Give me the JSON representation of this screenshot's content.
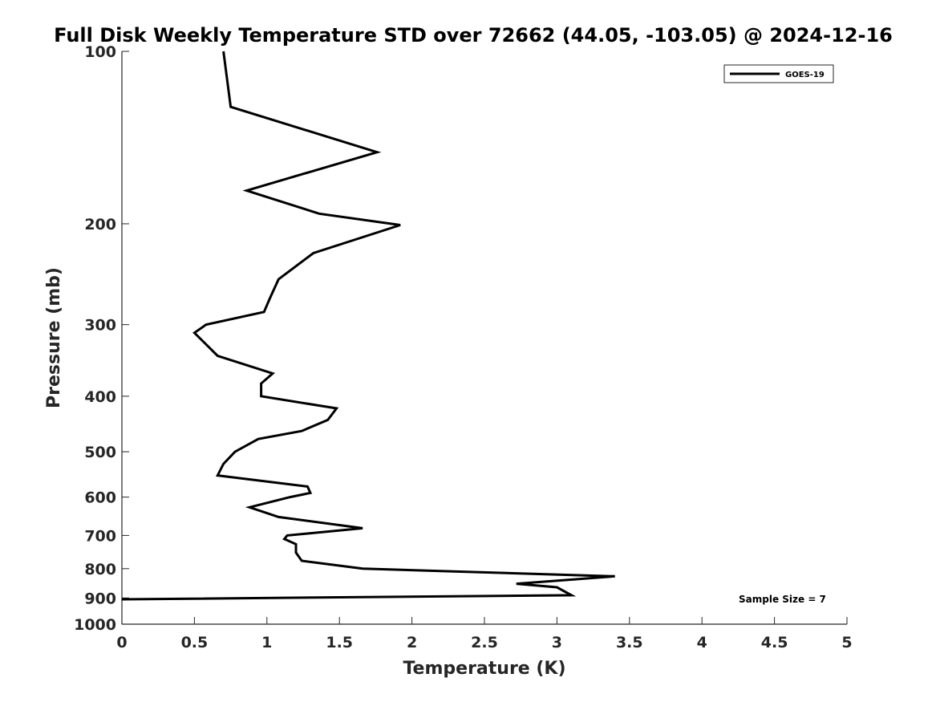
{
  "chart_data": {
    "type": "line",
    "title": "Full Disk Weekly Temperature STD over 72662 (44.05, -103.05) @ 2024-12-16",
    "xlabel": "Temperature (K)",
    "ylabel": "Pressure (mb)",
    "xlim": [
      0,
      5
    ],
    "ylim": [
      100,
      1000
    ],
    "yscale": "log",
    "y_reversed": true,
    "grid": false,
    "legend_position": "top-right",
    "x_ticks": [
      "0",
      "0.5",
      "1",
      "1.5",
      "2",
      "2.5",
      "3",
      "3.5",
      "4",
      "4.5",
      "5"
    ],
    "y_ticks": [
      "100",
      "200",
      "300",
      "400",
      "500",
      "600",
      "700",
      "800",
      "900",
      "1000"
    ],
    "series": [
      {
        "name": "GOES-19",
        "color": "#000000",
        "points": [
          {
            "x": 0.7,
            "y": 100
          },
          {
            "x": 0.75,
            "y": 125
          },
          {
            "x": 1.76,
            "y": 150
          },
          {
            "x": 0.86,
            "y": 175
          },
          {
            "x": 1.36,
            "y": 192
          },
          {
            "x": 1.92,
            "y": 201
          },
          {
            "x": 1.32,
            "y": 225
          },
          {
            "x": 1.08,
            "y": 250
          },
          {
            "x": 1.02,
            "y": 270
          },
          {
            "x": 0.98,
            "y": 285
          },
          {
            "x": 0.58,
            "y": 300
          },
          {
            "x": 0.5,
            "y": 310
          },
          {
            "x": 0.66,
            "y": 340
          },
          {
            "x": 1.04,
            "y": 365
          },
          {
            "x": 0.96,
            "y": 380
          },
          {
            "x": 0.96,
            "y": 400
          },
          {
            "x": 1.48,
            "y": 420
          },
          {
            "x": 1.42,
            "y": 440
          },
          {
            "x": 1.24,
            "y": 460
          },
          {
            "x": 0.94,
            "y": 475
          },
          {
            "x": 0.78,
            "y": 500
          },
          {
            "x": 0.7,
            "y": 525
          },
          {
            "x": 0.66,
            "y": 550
          },
          {
            "x": 1.28,
            "y": 575
          },
          {
            "x": 1.3,
            "y": 590
          },
          {
            "x": 1.16,
            "y": 600
          },
          {
            "x": 0.88,
            "y": 625
          },
          {
            "x": 1.08,
            "y": 650
          },
          {
            "x": 1.66,
            "y": 680
          },
          {
            "x": 1.14,
            "y": 700
          },
          {
            "x": 1.12,
            "y": 710
          },
          {
            "x": 1.2,
            "y": 725
          },
          {
            "x": 1.2,
            "y": 750
          },
          {
            "x": 1.24,
            "y": 775
          },
          {
            "x": 1.66,
            "y": 800
          },
          {
            "x": 3.4,
            "y": 825
          },
          {
            "x": 2.72,
            "y": 850
          },
          {
            "x": 3.0,
            "y": 862
          },
          {
            "x": 3.1,
            "y": 890
          },
          {
            "x": 0.0,
            "y": 905
          }
        ]
      }
    ],
    "annotation": "Sample Size = 7"
  }
}
